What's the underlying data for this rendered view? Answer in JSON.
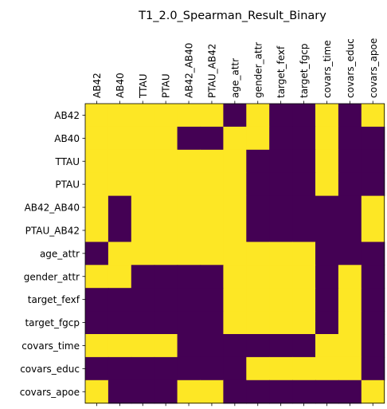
{
  "chart_data": {
    "type": "heatmap",
    "title": "T1_2.0_Spearman_Result_Binary",
    "labels": [
      "AB42",
      "AB40",
      "TTAU",
      "PTAU",
      "AB42_AB40",
      "PTAU_AB42",
      "age_attr",
      "gender_attr",
      "target_fexf",
      "target_fgcp",
      "covars_time",
      "covars_educ",
      "covars_apoe"
    ],
    "x_axis_position": "top",
    "x_tick_rotation": 90,
    "colors": {
      "0": "#440154",
      "1": "#fde725"
    },
    "matrix": [
      [
        1,
        1,
        1,
        1,
        1,
        1,
        0,
        1,
        0,
        0,
        1,
        0,
        1
      ],
      [
        1,
        1,
        1,
        1,
        0,
        0,
        1,
        1,
        0,
        0,
        1,
        0,
        0
      ],
      [
        1,
        1,
        1,
        1,
        1,
        1,
        1,
        0,
        0,
        0,
        1,
        0,
        0
      ],
      [
        1,
        1,
        1,
        1,
        1,
        1,
        1,
        0,
        0,
        0,
        1,
        0,
        0
      ],
      [
        1,
        0,
        1,
        1,
        1,
        1,
        1,
        0,
        0,
        0,
        0,
        0,
        1
      ],
      [
        1,
        0,
        1,
        1,
        1,
        1,
        1,
        0,
        0,
        0,
        0,
        0,
        1
      ],
      [
        0,
        1,
        1,
        1,
        1,
        1,
        1,
        1,
        1,
        1,
        0,
        0,
        0
      ],
      [
        1,
        1,
        0,
        0,
        0,
        0,
        1,
        1,
        1,
        1,
        0,
        1,
        0
      ],
      [
        0,
        0,
        0,
        0,
        0,
        0,
        1,
        1,
        1,
        1,
        0,
        1,
        0
      ],
      [
        0,
        0,
        0,
        0,
        0,
        0,
        1,
        1,
        1,
        1,
        0,
        1,
        0
      ],
      [
        1,
        1,
        1,
        1,
        0,
        0,
        0,
        0,
        0,
        0,
        1,
        1,
        0
      ],
      [
        0,
        0,
        0,
        0,
        0,
        0,
        0,
        1,
        1,
        1,
        1,
        1,
        0
      ],
      [
        1,
        0,
        0,
        0,
        1,
        1,
        0,
        0,
        0,
        0,
        0,
        0,
        1
      ]
    ]
  }
}
